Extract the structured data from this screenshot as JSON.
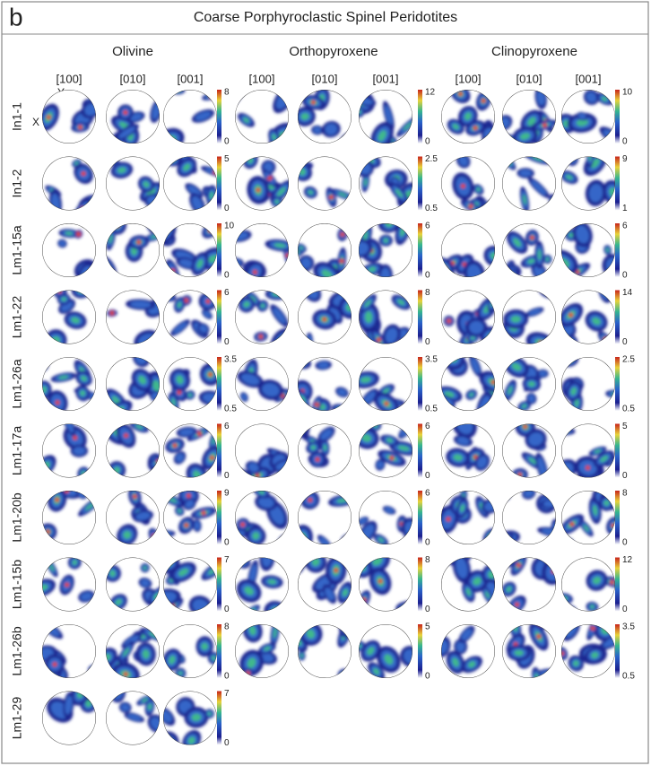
{
  "panel_label": "b",
  "title": "Coarse Porphyroclastic Spinel Peridotites",
  "minerals": [
    {
      "name": "Olivine",
      "axes": [
        "[100]",
        "[010]",
        "[001]"
      ]
    },
    {
      "name": "Orthopyroxene",
      "axes": [
        "[100]",
        "[010]",
        "[001]"
      ]
    },
    {
      "name": "Clinopyroxene",
      "axes": [
        "[100]",
        "[010]",
        "[001]"
      ]
    }
  ],
  "axis_marks": {
    "y": "Y",
    "x": "X"
  },
  "rows": [
    {
      "sample": "In1-1",
      "scales": [
        {
          "max": 8,
          "min": 0
        },
        {
          "max": 12,
          "min": 0
        },
        {
          "max": 10,
          "min": 0
        }
      ]
    },
    {
      "sample": "In1-2",
      "scales": [
        {
          "max": 5,
          "min": 0
        },
        {
          "max": 2.5,
          "min": 0.5
        },
        {
          "max": 9,
          "min": 1
        }
      ]
    },
    {
      "sample": "Lm1-15a",
      "scales": [
        {
          "max": 10,
          "min": 0
        },
        {
          "max": 6,
          "min": 0
        },
        {
          "max": 6,
          "min": 0
        }
      ]
    },
    {
      "sample": "Lm1-22",
      "scales": [
        {
          "max": 6,
          "min": 0
        },
        {
          "max": 8,
          "min": 0
        },
        {
          "max": 14,
          "min": 0
        }
      ]
    },
    {
      "sample": "Lm1-26a",
      "scales": [
        {
          "max": 3.5,
          "min": 0.5
        },
        {
          "max": 3.5,
          "min": 0.5
        },
        {
          "max": 2.5,
          "min": 0.5
        }
      ]
    },
    {
      "sample": "Lm1-17a",
      "scales": [
        {
          "max": 6,
          "min": 0
        },
        {
          "max": 6,
          "min": 0
        },
        {
          "max": 5,
          "min": 0
        }
      ]
    },
    {
      "sample": "Lm1-20b",
      "scales": [
        {
          "max": 9,
          "min": 0
        },
        {
          "max": 6,
          "min": 0
        },
        {
          "max": 8,
          "min": 0
        }
      ]
    },
    {
      "sample": "Lm1-15b",
      "scales": [
        {
          "max": 7,
          "min": 0
        },
        {
          "max": 8,
          "min": 0
        },
        {
          "max": 12,
          "min": 0
        }
      ]
    },
    {
      "sample": "Lm1-26b",
      "scales": [
        {
          "max": 8,
          "min": 0
        },
        {
          "max": 5,
          "min": 0
        },
        {
          "max": 3.5,
          "min": 0.5
        }
      ]
    },
    {
      "sample": "Lm1-29",
      "scales": [
        {
          "max": 7,
          "min": 0
        }
      ]
    }
  ]
}
